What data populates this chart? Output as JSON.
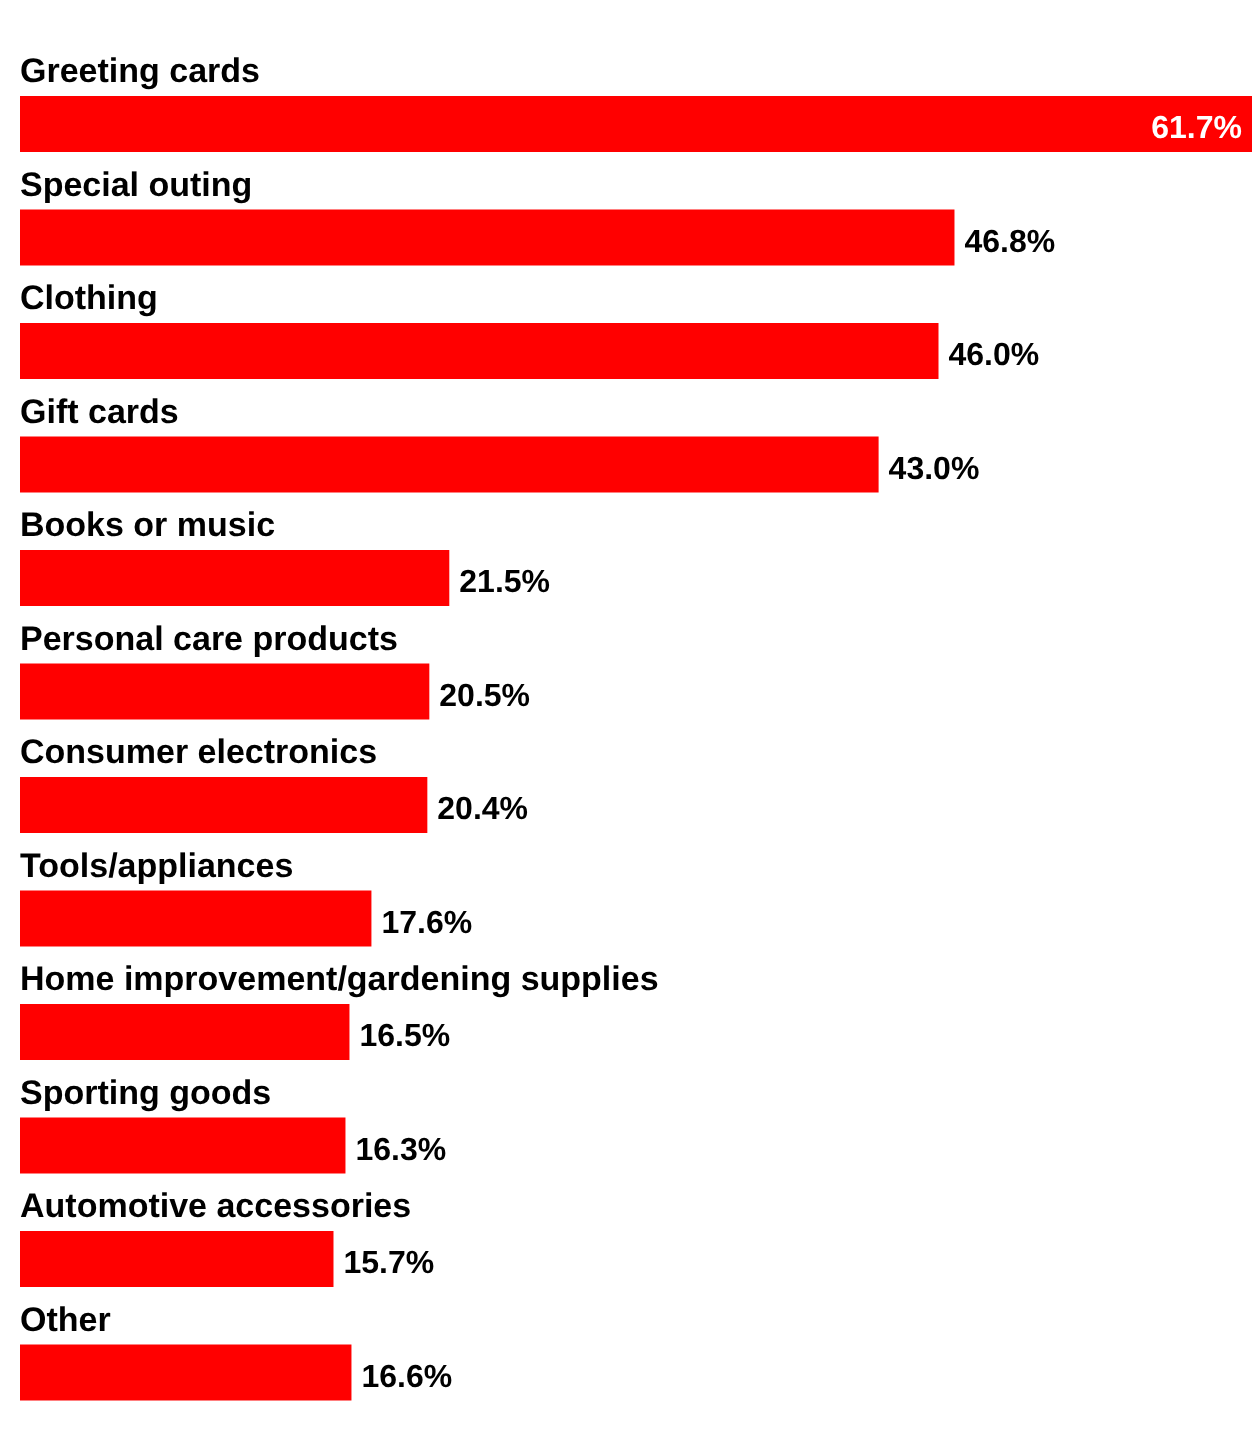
{
  "chart_data": {
    "type": "bar",
    "orientation": "horizontal",
    "categories": [
      "Greeting cards",
      "Special outing",
      "Clothing",
      "Gift cards",
      "Books or music",
      "Personal care products",
      "Consumer electronics",
      "Tools/appliances",
      "Home improvement/gardening supplies",
      "Sporting goods",
      "Automotive accessories",
      "Other"
    ],
    "values": [
      61.7,
      46.8,
      46.0,
      43.0,
      21.5,
      20.5,
      20.4,
      17.6,
      16.5,
      16.3,
      15.7,
      16.6
    ],
    "value_labels": [
      "61.7%",
      "46.8%",
      "46.0%",
      "43.0%",
      "21.5%",
      "20.5%",
      "20.4%",
      "17.6%",
      "16.5%",
      "16.3%",
      "15.7%",
      "16.6%"
    ],
    "color": "#ff0000"
  }
}
